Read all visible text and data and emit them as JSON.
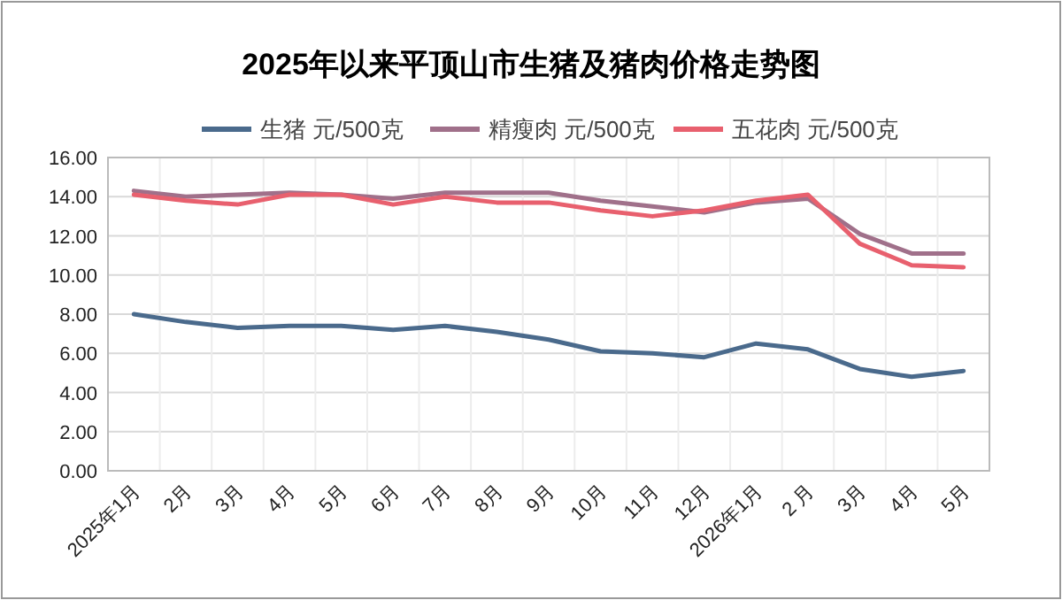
{
  "chart_data": {
    "type": "line",
    "title": "2025年以来平顶山市生猪及猪肉价格走势图",
    "categories": [
      "2025年1月",
      "2月",
      "3月",
      "4月",
      "5月",
      "6月",
      "7月",
      "8月",
      "9月",
      "10月",
      "11月",
      "12月",
      "2026年1月",
      "2 月",
      "3月",
      "4月",
      "5月"
    ],
    "series": [
      {
        "name": "生猪  元/500克",
        "color": "#4a6a8c",
        "values": [
          8.0,
          7.6,
          7.3,
          7.4,
          7.4,
          7.2,
          7.4,
          7.1,
          6.7,
          6.1,
          6.0,
          5.8,
          6.5,
          6.2,
          5.2,
          4.8,
          5.1
        ]
      },
      {
        "name": "精瘦肉  元/500克",
        "color": "#a0708a",
        "values": [
          14.3,
          14.0,
          14.1,
          14.2,
          14.1,
          13.9,
          14.2,
          14.2,
          14.2,
          13.8,
          13.5,
          13.2,
          13.7,
          13.9,
          12.1,
          11.1,
          11.1
        ]
      },
      {
        "name": "五花肉  元/500克",
        "color": "#e8606e",
        "values": [
          14.1,
          13.8,
          13.6,
          14.1,
          14.1,
          13.6,
          14.0,
          13.7,
          13.7,
          13.3,
          13.0,
          13.3,
          13.8,
          14.1,
          11.6,
          10.5,
          10.4
        ]
      }
    ],
    "ylim": [
      0,
      16
    ],
    "yticks": [
      {
        "value": 0,
        "label": "0.00"
      },
      {
        "value": 2,
        "label": "2.00"
      },
      {
        "value": 4,
        "label": "4.00"
      },
      {
        "value": 6,
        "label": "6.00"
      },
      {
        "value": 8,
        "label": "8.00"
      },
      {
        "value": 10,
        "label": "10.00"
      },
      {
        "value": 12,
        "label": "12.00"
      },
      {
        "value": 14,
        "label": "14.00"
      },
      {
        "value": 16,
        "label": "16.00"
      }
    ],
    "grid": true,
    "legend": "top",
    "marker": "none",
    "line_style": "solid"
  }
}
